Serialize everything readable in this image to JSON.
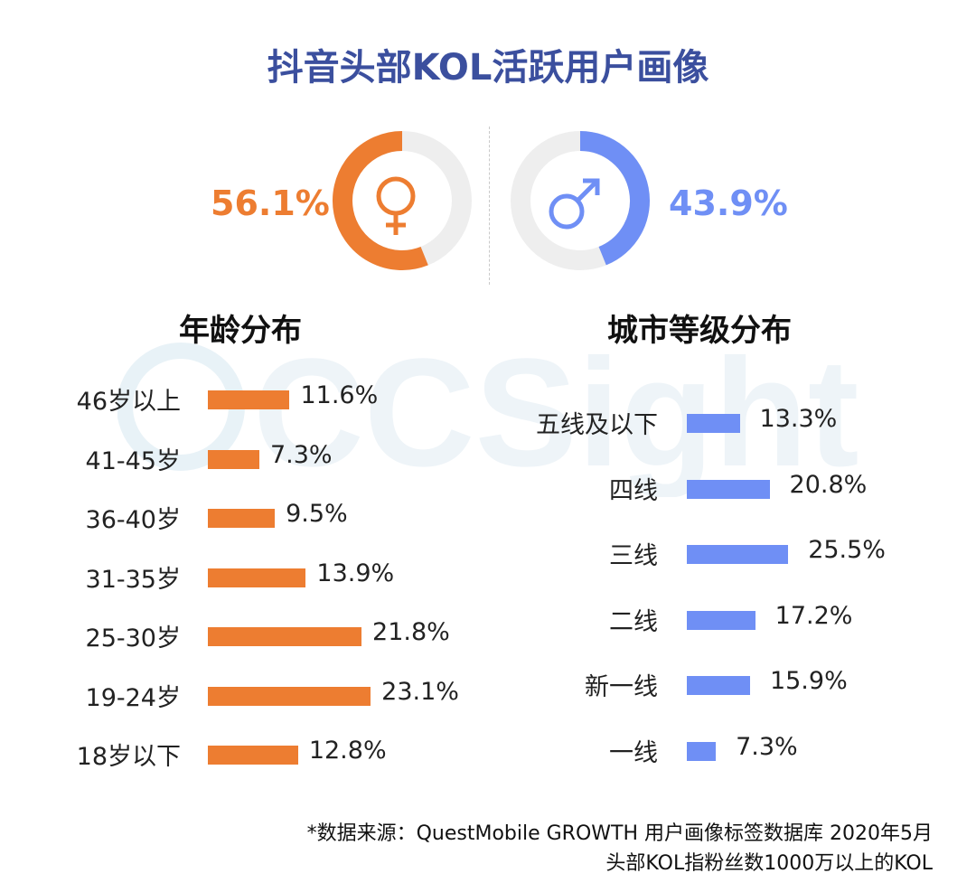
{
  "title": "抖音头部KOL活跃用户画像",
  "watermark": "CCSight",
  "colors": {
    "female": "#ed7d31",
    "male": "#6f8ff5",
    "ring_bg": "#eeeeee",
    "title": "#3b4f9e"
  },
  "gender": {
    "female": {
      "label": "56.1%",
      "value": 56.1,
      "icon": "female-symbol-icon"
    },
    "male": {
      "label": "43.9%",
      "value": 43.9,
      "icon": "male-symbol-icon"
    }
  },
  "chart_data": [
    {
      "type": "bar",
      "orientation": "horizontal",
      "title": "年龄分布",
      "categories": [
        "46岁以上",
        "41-45岁",
        "36-40岁",
        "31-35岁",
        "25-30岁",
        "19-24岁",
        "18岁以下"
      ],
      "values": [
        11.6,
        7.3,
        9.5,
        13.9,
        21.8,
        23.1,
        12.8
      ],
      "value_labels": [
        "11.6%",
        "7.3%",
        "9.5%",
        "13.9%",
        "21.8%",
        "23.1%",
        "12.8%"
      ],
      "color": "#ed7d31"
    },
    {
      "type": "bar",
      "orientation": "horizontal",
      "title": "城市等级分布",
      "categories": [
        "五线及以下",
        "四线",
        "三线",
        "二线",
        "新一线",
        "一线"
      ],
      "values": [
        13.3,
        20.8,
        25.5,
        17.2,
        15.9,
        7.3
      ],
      "value_labels": [
        "13.3%",
        "20.8%",
        "25.5%",
        "17.2%",
        "15.9%",
        "7.3%"
      ],
      "color": "#6f8ff5"
    }
  ],
  "footnote": {
    "line1": "*数据来源：QuestMobile GROWTH 用户画像标签数据库 2020年5月",
    "line2": "头部KOL指粉丝数1000万以上的KOL"
  }
}
